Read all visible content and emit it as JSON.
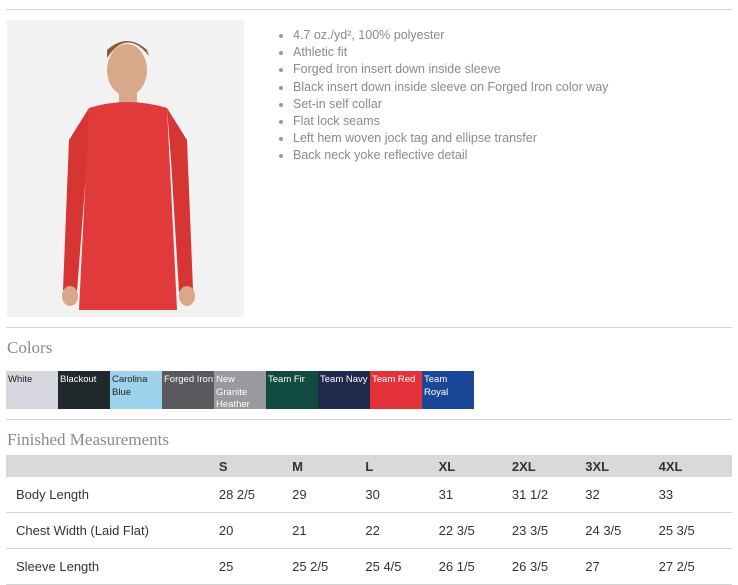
{
  "product_image": {
    "alt": "Man wearing red long sleeve shirt",
    "shirt_color": "#e03a3a"
  },
  "features": [
    "4.7 oz./yd², 100% polyester",
    "Athletic fit",
    "Forged Iron insert down inside sleeve",
    "Black insert down inside sleeve on Forged Iron color way",
    "Set-in self collar",
    "Flat lock seams",
    "Left hem woven jock tag and ellipse transfer",
    "Back neck yoke reflective detail"
  ],
  "colors_heading": "Colors",
  "colors": [
    {
      "name": "White",
      "hex": "#d5d6de",
      "text": "#222"
    },
    {
      "name": "Blackout",
      "hex": "#20282b",
      "text": "#fff"
    },
    {
      "name": "Carolina Blue",
      "hex": "#9dd2ec",
      "text": "#222"
    },
    {
      "name": "Forged Iron",
      "hex": "#5a595e",
      "text": "#fff"
    },
    {
      "name": "New Granite Heather",
      "hex": "#9a999e",
      "text": "#fff"
    },
    {
      "name": "Team Fir",
      "hex": "#114a3e",
      "text": "#fff"
    },
    {
      "name": "Team Navy",
      "hex": "#1e2b4a",
      "text": "#fff"
    },
    {
      "name": "Team Red",
      "hex": "#e3323a",
      "text": "#fff"
    },
    {
      "name": "Team Royal",
      "hex": "#1b4799",
      "text": "#fff"
    }
  ],
  "measurements_heading": "Finished Measurements",
  "table": {
    "headers": [
      "",
      "S",
      "M",
      "L",
      "XL",
      "2XL",
      "3XL",
      "4XL"
    ],
    "rows": [
      [
        "Body Length",
        "28 2/5",
        "29",
        "30",
        "31",
        "31 1/2",
        "32",
        "33"
      ],
      [
        "Chest Width (Laid Flat)",
        "20",
        "21",
        "22",
        "22 3/5",
        "23 3/5",
        "24 3/5",
        "25 3/5"
      ],
      [
        "Sleeve Length",
        "25",
        "25 2/5",
        "25 4/5",
        "26 1/5",
        "26 3/5",
        "27",
        "27 2/5"
      ]
    ]
  }
}
